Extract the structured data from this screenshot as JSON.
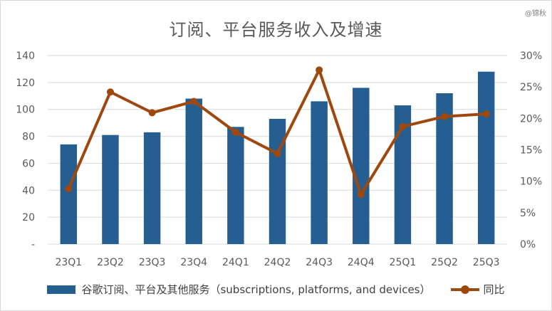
{
  "watermark": "@锦秋",
  "chart_data": {
    "type": "bar+line",
    "title": "订阅、平台服务收入及增速",
    "categories": [
      "23Q1",
      "23Q2",
      "23Q3",
      "23Q4",
      "24Q1",
      "24Q2",
      "24Q3",
      "24Q4",
      "25Q1",
      "25Q2",
      "25Q3"
    ],
    "series": [
      {
        "name": "谷歌订阅、平台及其他服务（subscriptions, platforms, and devices）",
        "type": "bar",
        "axis": "left",
        "color": "#255e91",
        "values": [
          74,
          81,
          83,
          108,
          87,
          93,
          106,
          116,
          103,
          112,
          128
        ]
      },
      {
        "name": "同比",
        "type": "line",
        "axis": "right",
        "color": "#9e480e",
        "values": [
          0.088,
          0.242,
          0.209,
          0.227,
          0.178,
          0.144,
          0.277,
          0.079,
          0.187,
          0.203,
          0.207
        ]
      }
    ],
    "y_left": {
      "ylim": [
        0,
        140
      ],
      "ticks": [
        0,
        20,
        40,
        60,
        80,
        100,
        120,
        140
      ],
      "tick_labels": [
        "-",
        "20",
        "40",
        "60",
        "80",
        "100",
        "120",
        "140"
      ]
    },
    "y_right": {
      "ylim": [
        0,
        0.3
      ],
      "ticks": [
        0,
        0.05,
        0.1,
        0.15,
        0.2,
        0.25,
        0.3
      ],
      "tick_labels": [
        "0%",
        "5%",
        "10%",
        "15%",
        "20%",
        "25%",
        "30%"
      ]
    },
    "grid": true,
    "legend_position": "bottom"
  }
}
